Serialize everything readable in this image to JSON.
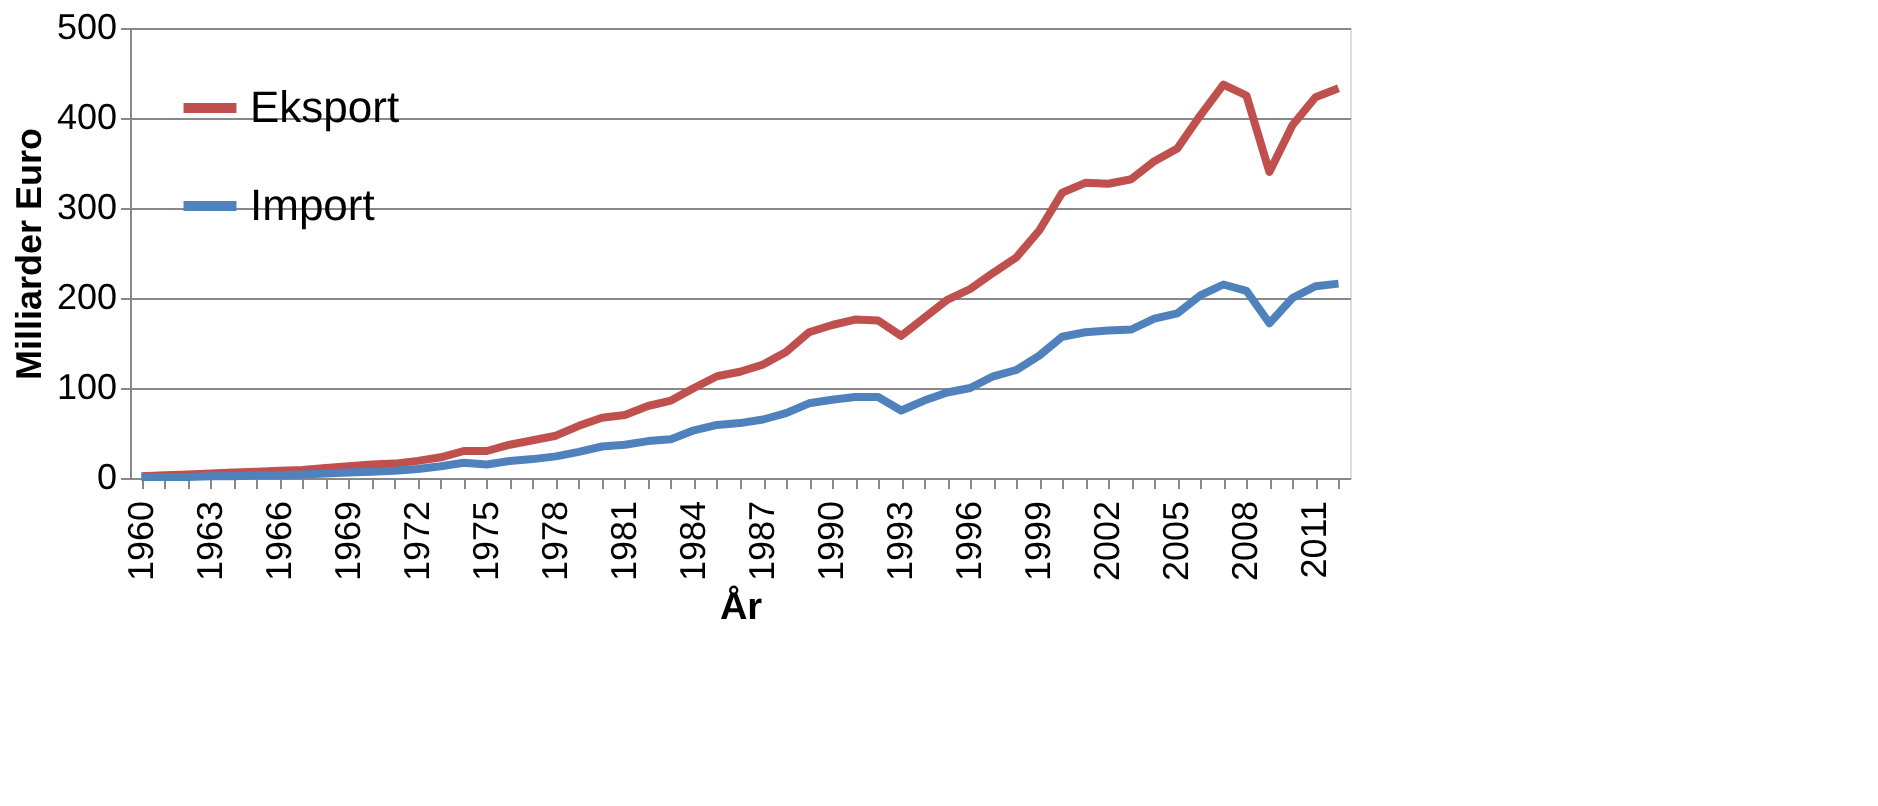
{
  "chart_data": {
    "type": "line",
    "xlabel": "År",
    "ylabel": "Milliarder Euro",
    "categories": [
      "1960",
      null,
      null,
      "1963",
      null,
      null,
      "1966",
      null,
      null,
      "1969",
      null,
      null,
      "1972",
      null,
      null,
      "1975",
      null,
      null,
      "1978",
      null,
      null,
      "1981",
      null,
      null,
      "1984",
      null,
      null,
      "1987",
      null,
      null,
      "1990",
      null,
      null,
      "1993",
      null,
      null,
      "1996",
      null,
      null,
      "1999",
      null,
      null,
      "2002",
      null,
      null,
      "2005",
      null,
      null,
      "2008",
      null,
      null,
      "2011",
      null
    ],
    "series": [
      {
        "name": "Eksport",
        "color": "#c0504d",
        "values": [
          2,
          3,
          4,
          5,
          6,
          7,
          8,
          9,
          11,
          13,
          15,
          16,
          19,
          23,
          30,
          30,
          37,
          42,
          47,
          58,
          67,
          70,
          80,
          86,
          100,
          113,
          118,
          126,
          140,
          162,
          170,
          176,
          175,
          158,
          178,
          198,
          210,
          228,
          245,
          275,
          317,
          328,
          327,
          332,
          352,
          366,
          403,
          437,
          425,
          340,
          392,
          423,
          433
        ]
      },
      {
        "name": "Import",
        "color": "#4f81bd",
        "values": [
          1,
          1,
          1,
          2,
          2,
          3,
          3,
          4,
          5,
          6,
          7,
          8,
          10,
          13,
          17,
          15,
          19,
          21,
          24,
          29,
          35,
          37,
          41,
          43,
          53,
          59,
          61,
          65,
          72,
          83,
          87,
          90,
          90,
          75,
          86,
          95,
          100,
          113,
          120,
          136,
          157,
          162,
          164,
          165,
          177,
          183,
          203,
          215,
          208,
          172,
          200,
          213,
          216
        ]
      }
    ],
    "ylim": [
      0,
      500
    ],
    "yticks": [
      0,
      100,
      200,
      300,
      400,
      500
    ],
    "grid": "y",
    "legend": "top left",
    "line_style": "solid"
  }
}
